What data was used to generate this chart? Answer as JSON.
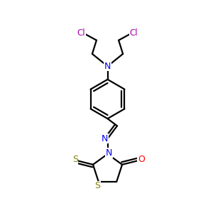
{
  "bg_color": "#ffffff",
  "atom_colors": {
    "C": "#000000",
    "N": "#0000ee",
    "O": "#ff0000",
    "S": "#808000",
    "Cl": "#aa00aa"
  },
  "bond_color": "#000000",
  "bond_width": 1.6,
  "figsize": [
    3.0,
    3.0
  ],
  "dpi": 100,
  "xlim": [
    0,
    10
  ],
  "ylim": [
    0,
    10
  ]
}
